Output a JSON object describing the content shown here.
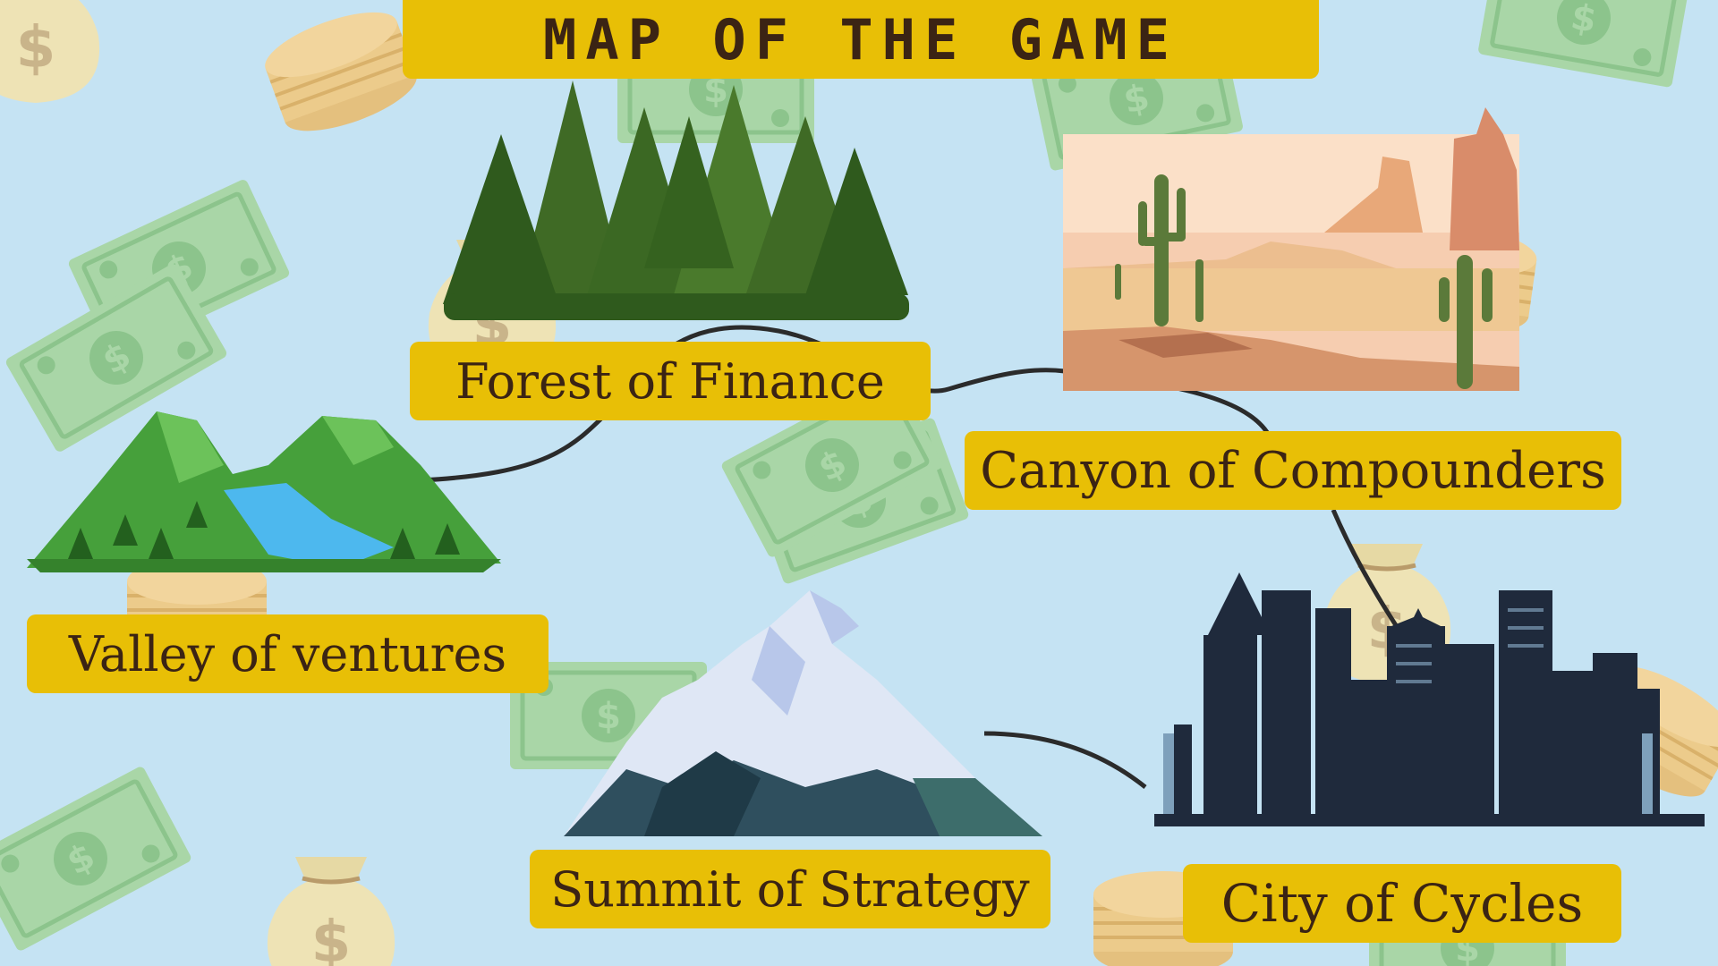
{
  "title": "MAP OF THE GAME",
  "colors": {
    "background": "#c5e3f3",
    "banner": "#e8bf06",
    "text": "#3b2414",
    "path": "#2b2b2b"
  },
  "locations": [
    {
      "id": "forest",
      "label": "Forest of Finance",
      "icon": "pine-forest-icon"
    },
    {
      "id": "canyon",
      "label": "Canyon of Compounders",
      "icon": "desert-canyon-icon"
    },
    {
      "id": "valley",
      "label": "Valley of ventures",
      "icon": "green-valley-icon"
    },
    {
      "id": "summit",
      "label": "Summit of Strategy",
      "icon": "snowy-mountain-icon"
    },
    {
      "id": "city",
      "label": "City of Cycles",
      "icon": "city-skyline-icon"
    }
  ],
  "background_decorations": [
    "banknote-icon",
    "coin-stack-icon",
    "money-bag-icon"
  ]
}
